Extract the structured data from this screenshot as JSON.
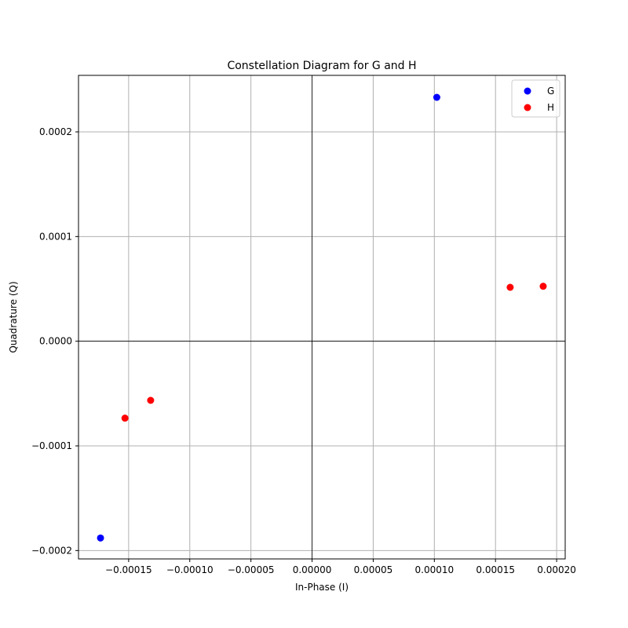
{
  "chart_data": {
    "type": "scatter",
    "title": "Constellation Diagram for G and H",
    "xlabel": "In-Phase (I)",
    "ylabel": "Quadrature (Q)",
    "xlim": [
      -0.000191,
      0.000207
    ],
    "ylim": [
      -0.000208,
      0.000254
    ],
    "grid": true,
    "zero_lines": true,
    "legend_position": "top-right",
    "x_ticks": [
      {
        "value": -0.00015,
        "label": "−0.00015"
      },
      {
        "value": -0.0001,
        "label": "−0.00010"
      },
      {
        "value": -5e-05,
        "label": "−0.00005"
      },
      {
        "value": 0.0,
        "label": "0.00000"
      },
      {
        "value": 5e-05,
        "label": "0.00005"
      },
      {
        "value": 0.0001,
        "label": "0.00010"
      },
      {
        "value": 0.00015,
        "label": "0.00015"
      },
      {
        "value": 0.0002,
        "label": "0.00020"
      }
    ],
    "y_ticks": [
      {
        "value": -0.0002,
        "label": "−0.0002"
      },
      {
        "value": -0.0001,
        "label": "−0.0001"
      },
      {
        "value": 0.0,
        "label": "0.0000"
      },
      {
        "value": 0.0001,
        "label": "0.0001"
      },
      {
        "value": 0.0002,
        "label": "0.0002"
      }
    ],
    "series": [
      {
        "name": "G",
        "color": "#0000ff",
        "points": [
          {
            "x": 0.000102,
            "y": 0.000233
          },
          {
            "x": -0.000173,
            "y": -0.000188
          }
        ]
      },
      {
        "name": "H",
        "color": "#ff0000",
        "points": [
          {
            "x": 0.000162,
            "y": 5.15e-05
          },
          {
            "x": 0.000189,
            "y": 5.25e-05
          },
          {
            "x": -0.000153,
            "y": -7.35e-05
          },
          {
            "x": -0.000132,
            "y": -5.65e-05
          }
        ]
      }
    ]
  }
}
